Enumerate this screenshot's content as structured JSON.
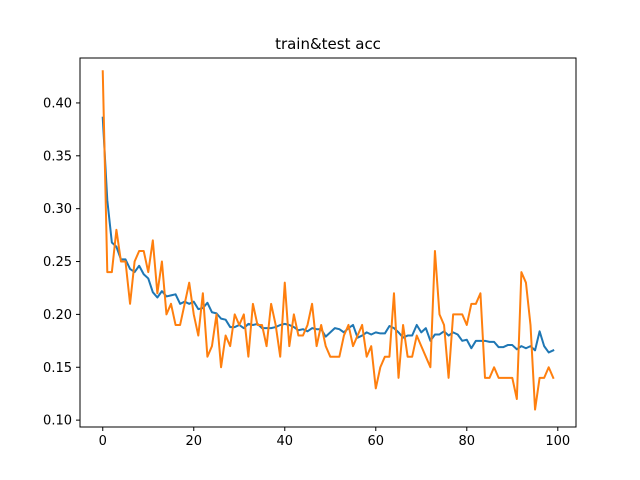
{
  "chart_data": {
    "type": "line",
    "title": "train&test acc",
    "xlabel": "",
    "ylabel": "",
    "xlim": [
      -5,
      104
    ],
    "ylim": [
      0.0935,
      0.4425
    ],
    "xticks": [
      0,
      20,
      40,
      60,
      80,
      100
    ],
    "yticks": [
      0.1,
      0.15,
      0.2,
      0.25,
      0.3,
      0.35,
      0.4
    ],
    "ytick_labels": [
      "0.10",
      "0.15",
      "0.20",
      "0.25",
      "0.30",
      "0.35",
      "0.40"
    ],
    "grid": false,
    "legend": "none",
    "series": [
      {
        "color": "#1f77b4",
        "x": [
          0,
          1,
          2,
          3,
          4,
          5,
          6,
          7,
          8,
          9,
          10,
          11,
          12,
          13,
          14,
          15,
          16,
          17,
          18,
          19,
          20,
          21,
          22,
          23,
          24,
          25,
          26,
          27,
          28,
          29,
          30,
          31,
          32,
          33,
          34,
          35,
          36,
          37,
          38,
          39,
          40,
          41,
          42,
          43,
          44,
          45,
          46,
          47,
          48,
          49,
          50,
          51,
          52,
          53,
          54,
          55,
          56,
          57,
          58,
          59,
          60,
          61,
          62,
          63,
          64,
          65,
          66,
          67,
          68,
          69,
          70,
          71,
          72,
          73,
          74,
          75,
          76,
          77,
          78,
          79,
          80,
          81,
          82,
          83,
          84,
          85,
          86,
          87,
          88,
          89,
          90,
          91,
          92,
          93,
          94,
          95,
          96,
          97,
          98,
          99
        ],
        "y": [
          0.386,
          0.308,
          0.268,
          0.264,
          0.252,
          0.252,
          0.243,
          0.24,
          0.246,
          0.238,
          0.234,
          0.221,
          0.216,
          0.222,
          0.217,
          0.218,
          0.219,
          0.21,
          0.212,
          0.21,
          0.212,
          0.205,
          0.206,
          0.211,
          0.202,
          0.201,
          0.196,
          0.195,
          0.188,
          0.188,
          0.19,
          0.187,
          0.191,
          0.19,
          0.191,
          0.187,
          0.187,
          0.187,
          0.188,
          0.19,
          0.191,
          0.19,
          0.188,
          0.185,
          0.186,
          0.184,
          0.187,
          0.186,
          0.186,
          0.179,
          0.183,
          0.187,
          0.186,
          0.183,
          0.187,
          0.19,
          0.178,
          0.18,
          0.183,
          0.181,
          0.183,
          0.182,
          0.182,
          0.189,
          0.187,
          0.183,
          0.178,
          0.18,
          0.18,
          0.19,
          0.183,
          0.187,
          0.175,
          0.181,
          0.181,
          0.184,
          0.18,
          0.183,
          0.181,
          0.175,
          0.176,
          0.168,
          0.175,
          0.175,
          0.175,
          0.174,
          0.174,
          0.169,
          0.169,
          0.171,
          0.171,
          0.167,
          0.17,
          0.168,
          0.17,
          0.166,
          0.184,
          0.17,
          0.164,
          0.166
        ]
      },
      {
        "color": "#ff7f0e",
        "x": [
          0,
          1,
          2,
          3,
          4,
          5,
          6,
          7,
          8,
          9,
          10,
          11,
          12,
          13,
          14,
          15,
          16,
          17,
          18,
          19,
          20,
          21,
          22,
          23,
          24,
          25,
          26,
          27,
          28,
          29,
          30,
          31,
          32,
          33,
          34,
          35,
          36,
          37,
          38,
          39,
          40,
          41,
          42,
          43,
          44,
          45,
          46,
          47,
          48,
          49,
          50,
          51,
          52,
          53,
          54,
          55,
          56,
          57,
          58,
          59,
          60,
          61,
          62,
          63,
          64,
          65,
          66,
          67,
          68,
          69,
          70,
          71,
          72,
          73,
          74,
          75,
          76,
          77,
          78,
          79,
          80,
          81,
          82,
          83,
          84,
          85,
          86,
          87,
          88,
          89,
          90,
          91,
          92,
          93,
          94,
          95,
          96,
          97,
          98,
          99
        ],
        "y": [
          0.43,
          0.24,
          0.24,
          0.28,
          0.25,
          0.25,
          0.21,
          0.25,
          0.26,
          0.26,
          0.24,
          0.27,
          0.22,
          0.25,
          0.2,
          0.21,
          0.19,
          0.19,
          0.21,
          0.23,
          0.2,
          0.18,
          0.22,
          0.16,
          0.17,
          0.2,
          0.15,
          0.18,
          0.17,
          0.2,
          0.19,
          0.2,
          0.16,
          0.21,
          0.19,
          0.19,
          0.17,
          0.21,
          0.19,
          0.16,
          0.23,
          0.17,
          0.2,
          0.18,
          0.18,
          0.19,
          0.21,
          0.17,
          0.19,
          0.17,
          0.16,
          0.16,
          0.16,
          0.18,
          0.19,
          0.17,
          0.18,
          0.19,
          0.16,
          0.17,
          0.13,
          0.15,
          0.16,
          0.16,
          0.22,
          0.14,
          0.19,
          0.16,
          0.16,
          0.18,
          0.17,
          0.16,
          0.15,
          0.26,
          0.2,
          0.19,
          0.14,
          0.2,
          0.2,
          0.2,
          0.19,
          0.21,
          0.21,
          0.22,
          0.14,
          0.14,
          0.15,
          0.14,
          0.14,
          0.14,
          0.14,
          0.12,
          0.24,
          0.23,
          0.19,
          0.11,
          0.14,
          0.14,
          0.15,
          0.14
        ]
      }
    ]
  }
}
